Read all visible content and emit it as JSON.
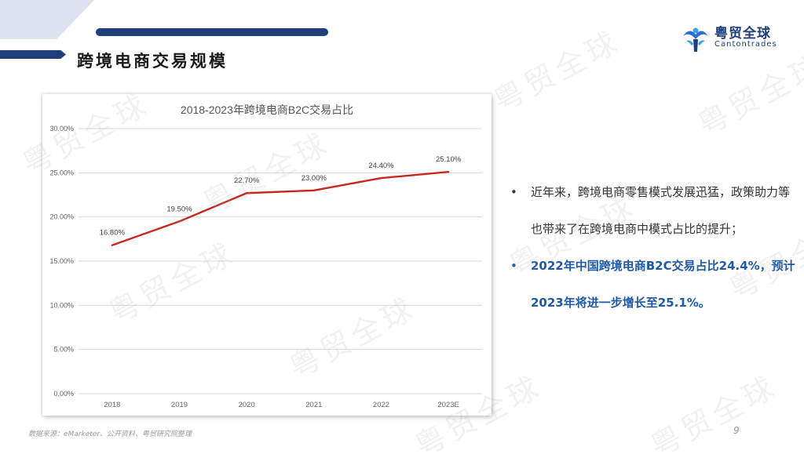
{
  "header": {
    "title": "跨境电商交易规模",
    "logo_cn": "粤贸全球",
    "logo_en": "Cantontrades",
    "accent_color": "#1f3f7a"
  },
  "watermark": {
    "text": "粤贸全球"
  },
  "chart_data": {
    "type": "line",
    "title": "2018-2023年跨境电商B2C交易占比",
    "categories": [
      "2018",
      "2019",
      "2020",
      "2021",
      "2022",
      "2023E"
    ],
    "series": [
      {
        "values": [
          16.8,
          19.5,
          22.7,
          23.0,
          24.4,
          25.1
        ],
        "color": "#c8281e"
      }
    ],
    "data_labels": [
      "16.80%",
      "19.50%",
      "22.70%",
      "23.00%",
      "24.40%",
      "25.10%"
    ],
    "y_ticks": [
      "0.00%",
      "5.00%",
      "10.00%",
      "15.00%",
      "20.00%",
      "25.00%",
      "30.00%"
    ],
    "ylim": [
      0,
      30
    ],
    "grid": true
  },
  "bullets": [
    {
      "text": "近年来，跨境电商零售模式发展迅猛，政策助力等也带来了在跨境电商中模式占比的提升；",
      "highlight": false
    },
    {
      "text": "2022年中国跨境电商B2C交易占比24.4%，预计2023年将进一步增长至25.1%。",
      "highlight": true
    }
  ],
  "footer": {
    "source": "数据来源：eMarketer、公开资料、粤贸研究院整理",
    "page_number": "9"
  }
}
